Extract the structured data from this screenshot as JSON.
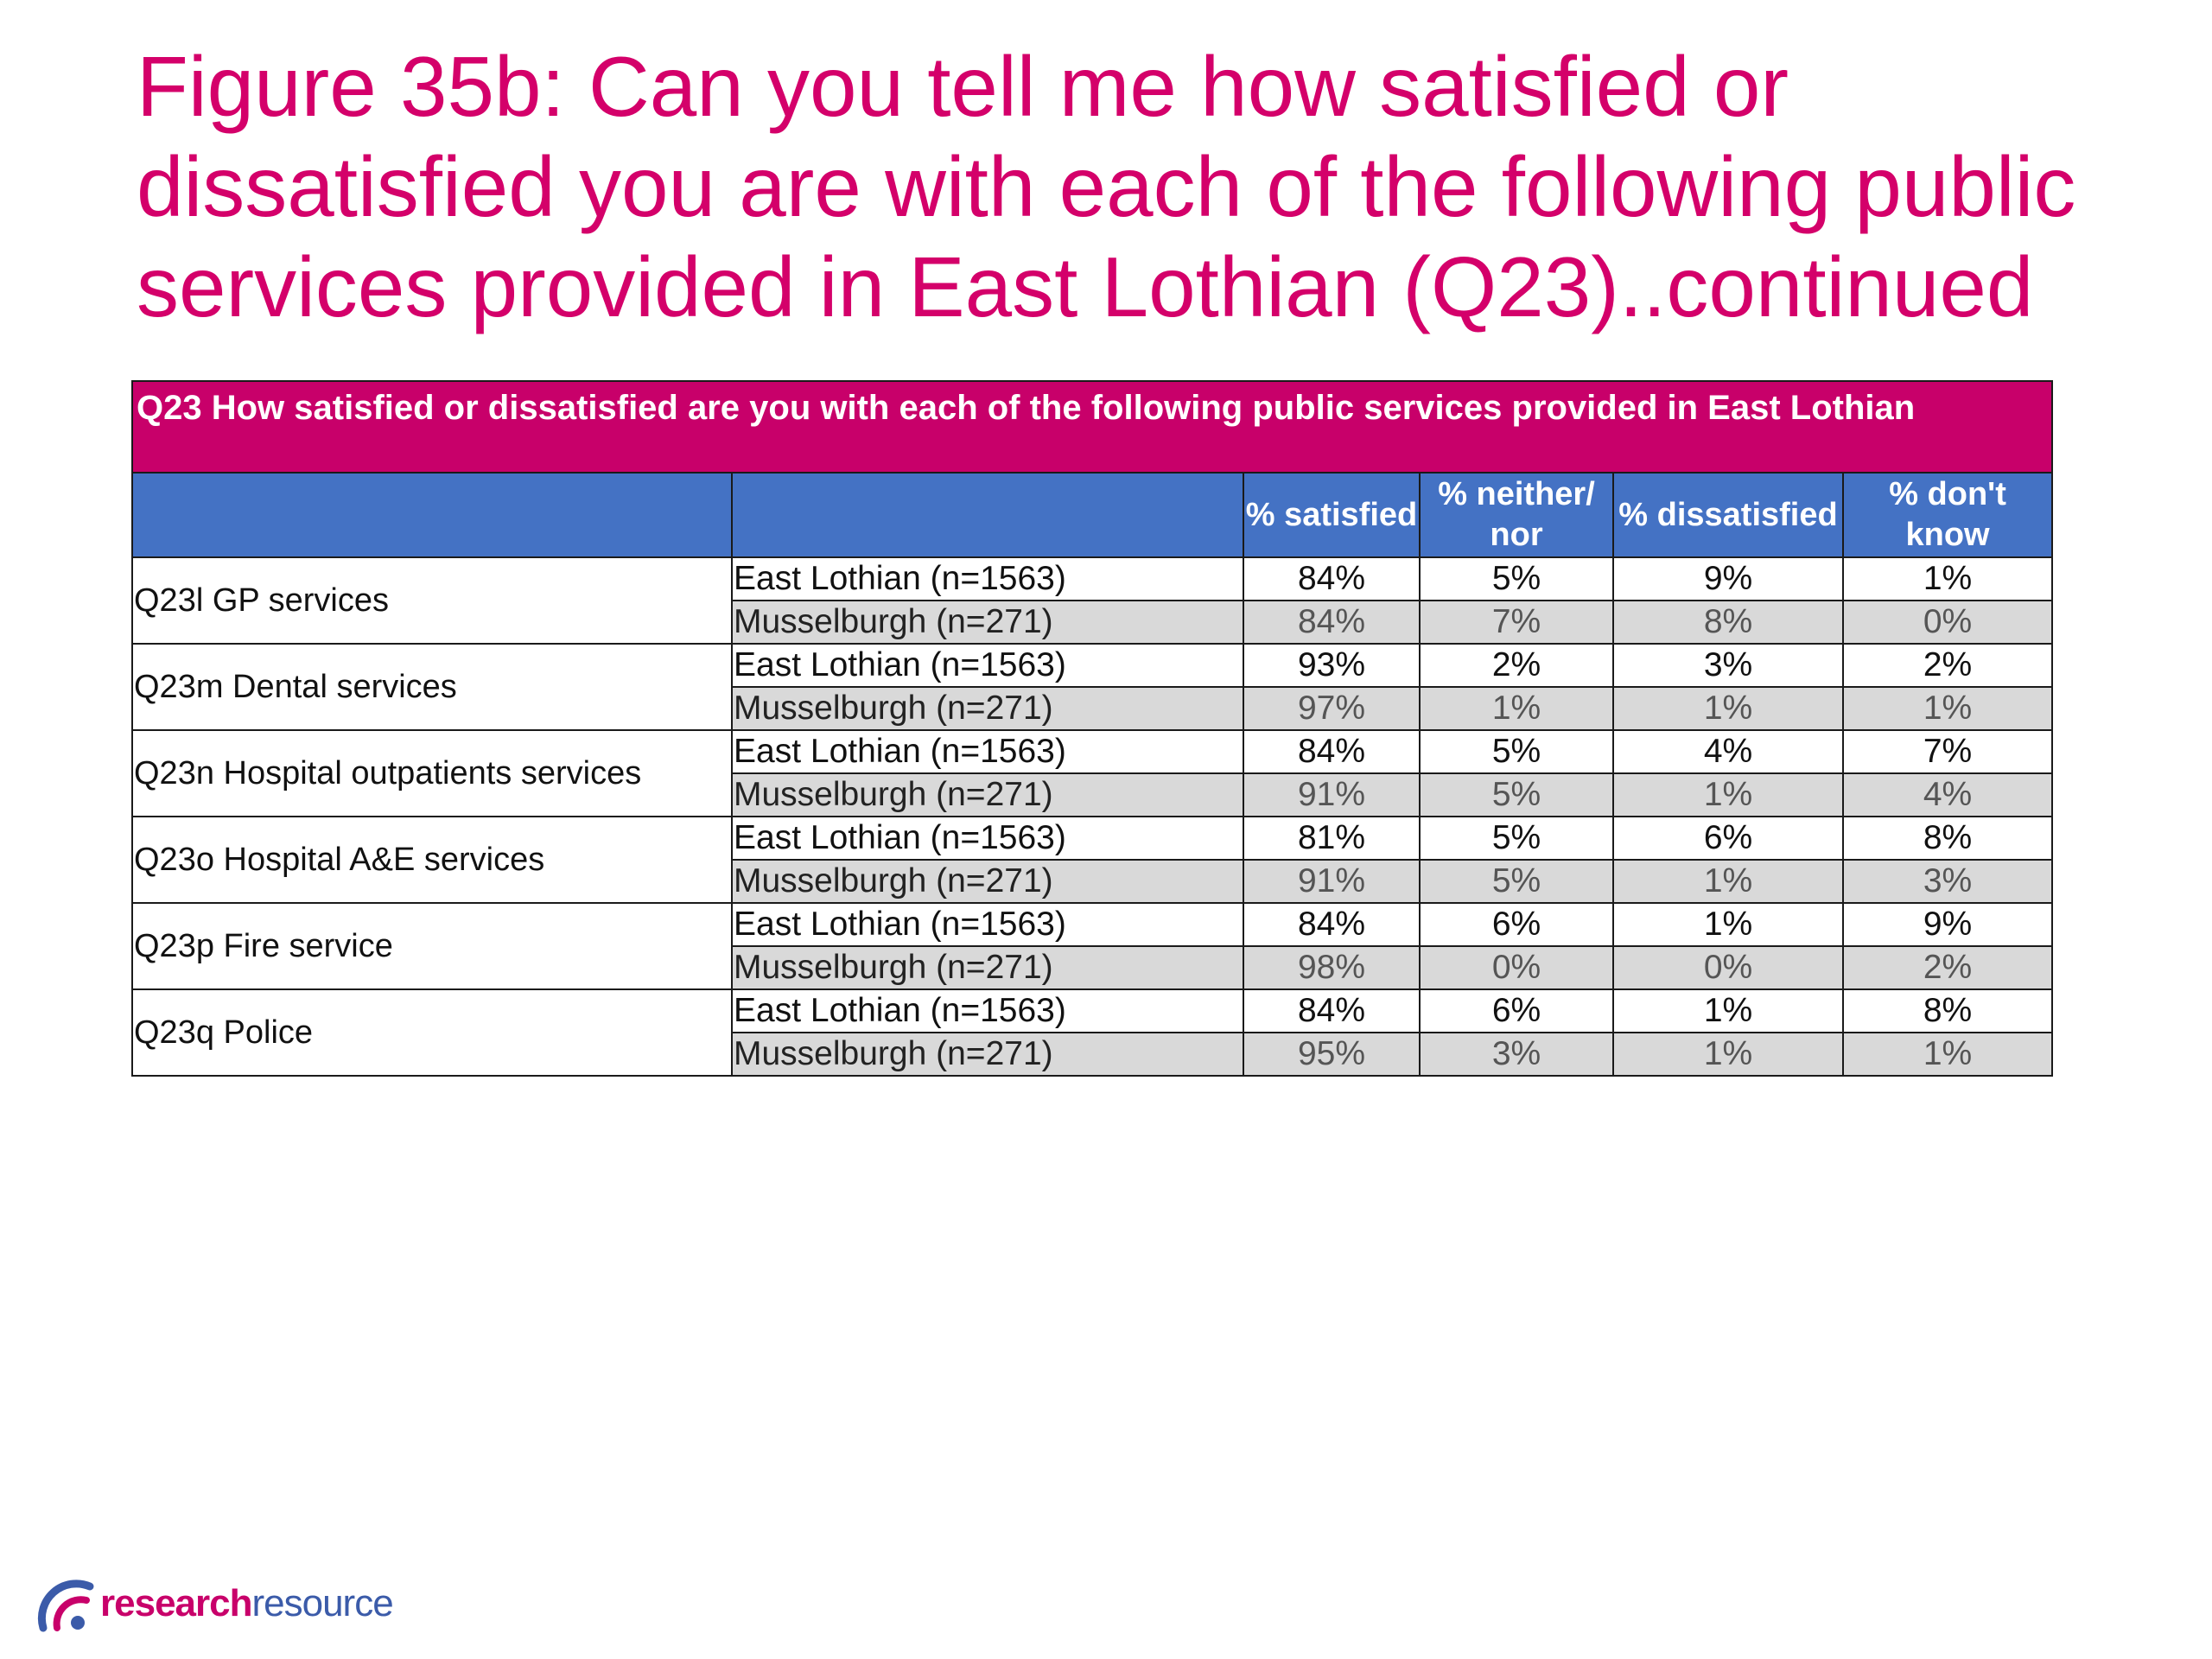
{
  "title": "Figure 35b: Can you tell me how satisfied or dissatisfied you are with each of the following public services provided in East Lothian (Q23)..continued",
  "table": {
    "banner": "Q23 How satisfied or dissatisfied are you with each of the following public services provided in East Lothian",
    "headers": [
      "% satisfied",
      "% neither/ nor",
      "% dissatisfied",
      "% don't know"
    ],
    "services": [
      {
        "name": "Q23l GP services",
        "rows": [
          {
            "area": "East Lothian (n=1563)",
            "values": [
              "84%",
              "5%",
              "9%",
              "1%"
            ]
          },
          {
            "area": "Musselburgh (n=271)",
            "values": [
              "84%",
              "7%",
              "8%",
              "0%"
            ]
          }
        ]
      },
      {
        "name": "Q23m Dental services",
        "rows": [
          {
            "area": "East Lothian (n=1563)",
            "values": [
              "93%",
              "2%",
              "3%",
              "2%"
            ]
          },
          {
            "area": "Musselburgh (n=271)",
            "values": [
              "97%",
              "1%",
              "1%",
              "1%"
            ]
          }
        ]
      },
      {
        "name": "Q23n Hospital outpatients services",
        "rows": [
          {
            "area": "East Lothian (n=1563)",
            "values": [
              "84%",
              "5%",
              "4%",
              "7%"
            ]
          },
          {
            "area": "Musselburgh (n=271)",
            "values": [
              "91%",
              "5%",
              "1%",
              "4%"
            ]
          }
        ]
      },
      {
        "name": "Q23o Hospital A&E services",
        "rows": [
          {
            "area": "East Lothian (n=1563)",
            "values": [
              "81%",
              "5%",
              "6%",
              "8%"
            ]
          },
          {
            "area": "Musselburgh (n=271)",
            "values": [
              "91%",
              "5%",
              "1%",
              "3%"
            ]
          }
        ]
      },
      {
        "name": "Q23p Fire service",
        "rows": [
          {
            "area": "East Lothian (n=1563)",
            "values": [
              "84%",
              "6%",
              "1%",
              "9%"
            ]
          },
          {
            "area": "Musselburgh (n=271)",
            "values": [
              "98%",
              "0%",
              "0%",
              "2%"
            ]
          }
        ]
      },
      {
        "name": "Q23q Police",
        "rows": [
          {
            "area": "East Lothian (n=1563)",
            "values": [
              "84%",
              "6%",
              "1%",
              "8%"
            ]
          },
          {
            "area": "Musselburgh (n=271)",
            "values": [
              "95%",
              "3%",
              "1%",
              "1%"
            ]
          }
        ]
      }
    ]
  },
  "logo": {
    "part1": "research",
    "part2": "resource",
    "icon": "research-resource-logo-icon"
  },
  "colors": {
    "title": "#d4006a",
    "banner": "#c8006a",
    "header": "#4472c4",
    "alt_row": "#d9d9d9"
  }
}
